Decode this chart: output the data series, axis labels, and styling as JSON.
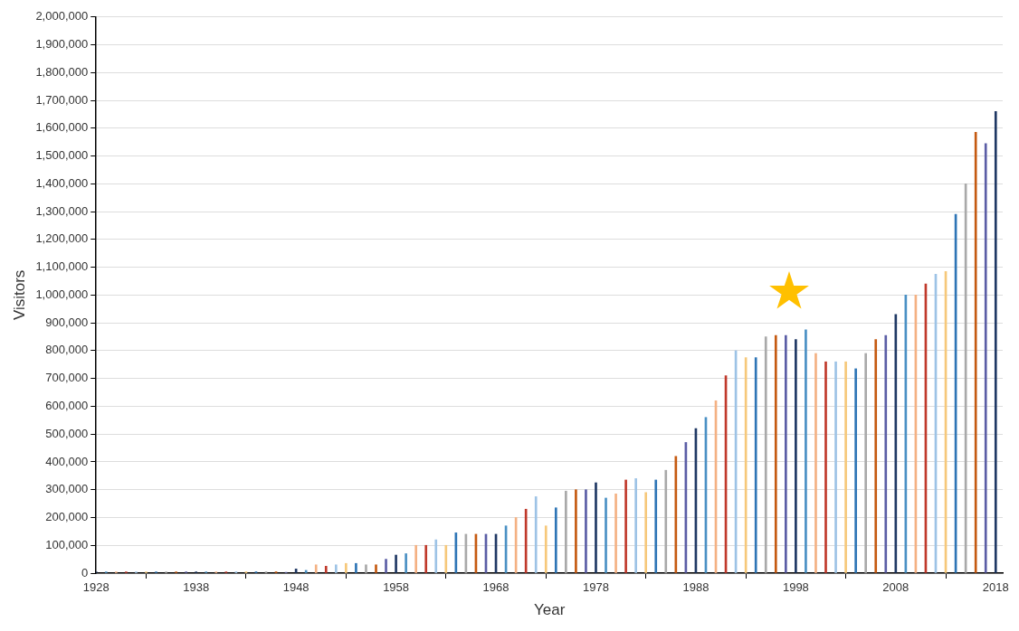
{
  "chart_data": {
    "type": "bar",
    "xlabel": "Year",
    "ylabel": "Visitors",
    "x": [
      1928,
      1929,
      1930,
      1931,
      1932,
      1933,
      1934,
      1935,
      1936,
      1937,
      1938,
      1939,
      1940,
      1941,
      1942,
      1943,
      1944,
      1945,
      1946,
      1947,
      1948,
      1949,
      1950,
      1951,
      1952,
      1953,
      1954,
      1955,
      1956,
      1957,
      1958,
      1959,
      1960,
      1961,
      1962,
      1963,
      1964,
      1965,
      1966,
      1967,
      1968,
      1969,
      1970,
      1971,
      1972,
      1973,
      1974,
      1975,
      1976,
      1977,
      1978,
      1979,
      1980,
      1981,
      1982,
      1983,
      1984,
      1985,
      1986,
      1987,
      1988,
      1989,
      1990,
      1991,
      1992,
      1993,
      1994,
      1995,
      1996,
      1997,
      1998,
      1999,
      2000,
      2001,
      2002,
      2003,
      2004,
      2005,
      2006,
      2007,
      2008,
      2009,
      2010,
      2011,
      2012,
      2013,
      2014,
      2015,
      2016,
      2017,
      2018
    ],
    "values": [
      5000,
      5000,
      5000,
      5000,
      5000,
      5000,
      5000,
      5000,
      5000,
      5000,
      5000,
      5000,
      5000,
      5000,
      5000,
      5000,
      5000,
      5000,
      5000,
      3000,
      15000,
      10000,
      30000,
      25000,
      30000,
      35000,
      35000,
      30000,
      30000,
      50000,
      65000,
      70000,
      100000,
      100000,
      120000,
      100000,
      145000,
      140000,
      140000,
      140000,
      140000,
      170000,
      200000,
      230000,
      275000,
      170000,
      235000,
      295000,
      300000,
      300000,
      325000,
      270000,
      285000,
      335000,
      340000,
      290000,
      335000,
      370000,
      420000,
      470000,
      520000,
      560000,
      620000,
      710000,
      800000,
      775000,
      775000,
      850000,
      855000,
      855000,
      840000,
      875000,
      790000,
      760000,
      760000,
      760000,
      735000,
      790000,
      840000,
      855000,
      930000,
      1000000,
      1000000,
      1040000,
      1075000,
      1085000,
      1290000,
      1400000,
      1585000,
      1545000,
      1660000
    ],
    "colors": [
      "#1f3864",
      "#4a90c4",
      "#f4b183",
      "#c0392b",
      "#9dc3e6",
      "#f6c87a",
      "#2e75b6",
      "#a9a9a9",
      "#c55a11",
      "#5b5ea6",
      "#1f3864",
      "#4a90c4",
      "#f4b183",
      "#c0392b",
      "#9dc3e6",
      "#f6c87a",
      "#2e75b6",
      "#a9a9a9",
      "#c55a11",
      "#5b5ea6",
      "#1f3864",
      "#4a90c4",
      "#f4b183",
      "#c0392b",
      "#9dc3e6",
      "#f6c87a",
      "#2e75b6",
      "#a9a9a9",
      "#c55a11",
      "#5b5ea6",
      "#1f3864",
      "#4a90c4",
      "#f4b183",
      "#c0392b",
      "#9dc3e6",
      "#f6c87a",
      "#2e75b6",
      "#a9a9a9",
      "#c55a11",
      "#5b5ea6",
      "#1f3864",
      "#4a90c4",
      "#f4b183",
      "#c0392b",
      "#9dc3e6",
      "#f6c87a",
      "#2e75b6",
      "#a9a9a9",
      "#c55a11",
      "#5b5ea6",
      "#1f3864",
      "#4a90c4",
      "#f4b183",
      "#c0392b",
      "#9dc3e6",
      "#f6c87a",
      "#2e75b6",
      "#a9a9a9",
      "#c55a11",
      "#5b5ea6",
      "#1f3864",
      "#4a90c4",
      "#f4b183",
      "#c0392b",
      "#9dc3e6",
      "#f6c87a",
      "#2e75b6",
      "#a9a9a9",
      "#c55a11",
      "#5b5ea6",
      "#1f3864",
      "#4a90c4",
      "#f4b183",
      "#c0392b",
      "#9dc3e6",
      "#f6c87a",
      "#2e75b6",
      "#a9a9a9",
      "#c55a11",
      "#5b5ea6",
      "#1f3864",
      "#4a90c4",
      "#f4b183",
      "#c0392b",
      "#9dc3e6",
      "#f6c87a",
      "#2e75b6",
      "#a9a9a9",
      "#c55a11",
      "#5b5ea6",
      "#1f3864"
    ],
    "xlim": [
      1928,
      2018.7
    ],
    "xticks": [
      1928,
      1938,
      1948,
      1958,
      1968,
      1978,
      1988,
      1998,
      2008,
      2018
    ],
    "ylim": [
      0,
      2000000
    ],
    "yticks": [
      0,
      {
        "value": 100000,
        "label": "100,000"
      },
      {
        "value": 200000,
        "label": "200,000"
      },
      {
        "value": 300000,
        "label": "300,000"
      },
      {
        "value": 400000,
        "label": "400,000"
      },
      {
        "value": 500000,
        "label": "500,000"
      },
      {
        "value": 600000,
        "label": "600,000"
      },
      {
        "value": 700000,
        "label": "700,000"
      },
      {
        "value": 800000,
        "label": "800,000"
      },
      {
        "value": 900000,
        "label": "900,000"
      },
      {
        "value": 1000000,
        "label": "1,000,000"
      },
      {
        "value": 1100000,
        "label": "1,100,000"
      },
      {
        "value": 1200000,
        "label": "1,200,000"
      },
      {
        "value": 1300000,
        "label": "1,300,000"
      },
      {
        "value": 1400000,
        "label": "1,400,000"
      },
      {
        "value": 1500000,
        "label": "1,500,000"
      },
      {
        "value": 1600000,
        "label": "1,600,000"
      },
      {
        "value": 1700000,
        "label": "1,700,000"
      },
      {
        "value": 1800000,
        "label": "1,800,000"
      },
      {
        "value": 1900000,
        "label": "1,900,000"
      },
      {
        "value": 2000000,
        "label": "2,000,000"
      }
    ],
    "grid": "y",
    "legend": false
  }
}
